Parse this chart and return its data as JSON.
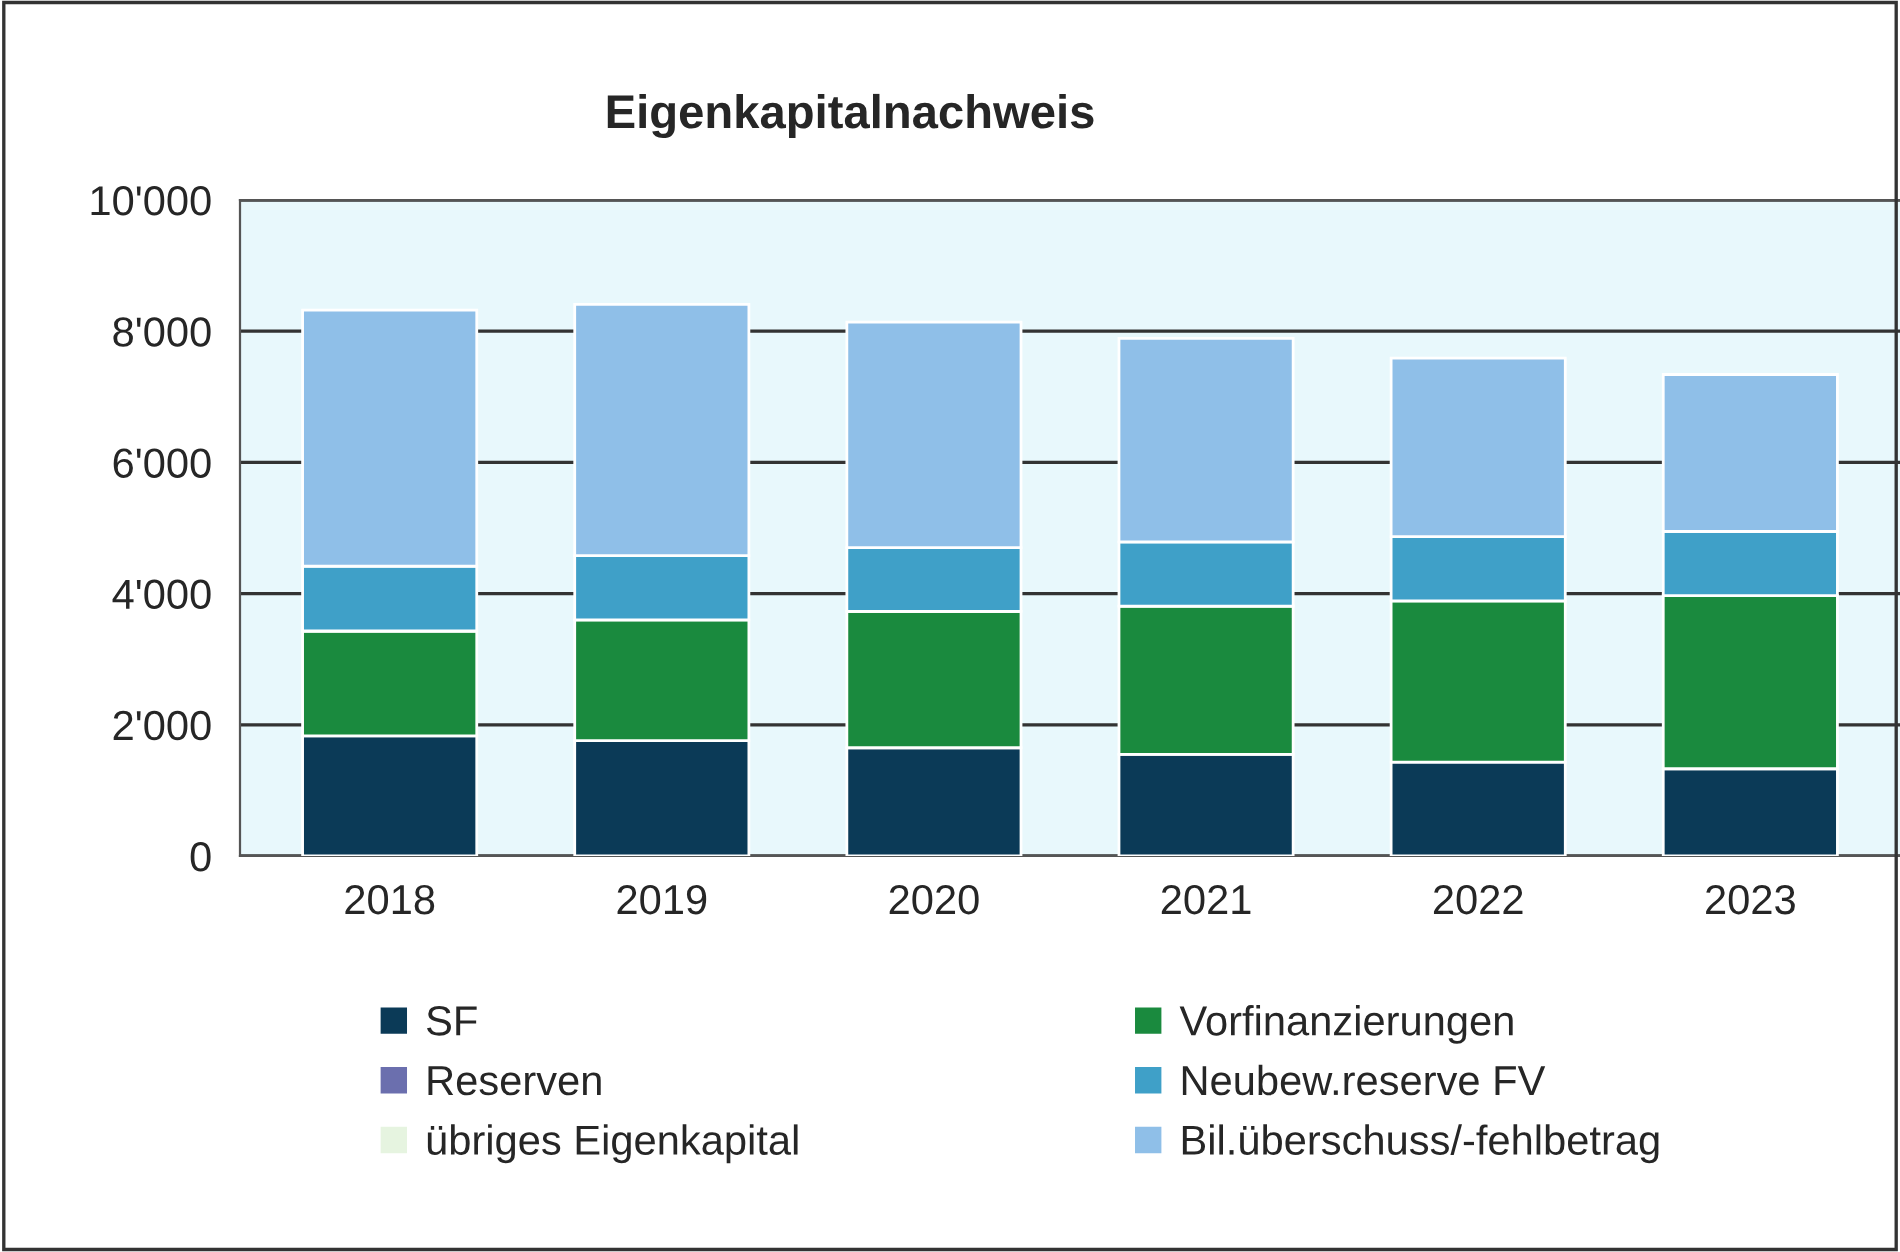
{
  "chart_data": {
    "type": "bar",
    "title": "Eigenkapitalnachweis",
    "stacked": true,
    "categories": [
      "2018",
      "2019",
      "2020",
      "2021",
      "2022",
      "2023"
    ],
    "series": [
      {
        "name": "SF",
        "color": "#0b3a57",
        "values": [
          1830,
          1760,
          1650,
          1550,
          1430,
          1330
        ]
      },
      {
        "name": "Vorfinanzierungen",
        "color": "#1a8a3e",
        "values": [
          1600,
          1840,
          2080,
          2260,
          2460,
          2640
        ]
      },
      {
        "name": "Reserven",
        "color": "#6b6fae",
        "values": [
          0,
          0,
          0,
          0,
          0,
          0
        ]
      },
      {
        "name": "Neubew.reserve FV",
        "color": "#3fa0c8",
        "values": [
          990,
          980,
          970,
          980,
          980,
          980
        ]
      },
      {
        "name": "übriges Eigenkapital",
        "color": "#e6f4e0",
        "values": [
          0,
          0,
          0,
          0,
          0,
          0
        ]
      },
      {
        "name": "Bil.überschuss/-fehlbetrag",
        "color": "#8fbfe8",
        "values": [
          3900,
          3830,
          3440,
          3100,
          2720,
          2390
        ]
      }
    ],
    "ylim": [
      0,
      10000
    ],
    "yticks": [
      0,
      {
        "value": 2000,
        "label": "2'000"
      },
      {
        "value": 4000,
        "label": "4'000"
      },
      {
        "value": 6000,
        "label": "6'000"
      },
      {
        "value": 8000,
        "label": "8'000"
      },
      {
        "value": 10000,
        "label": "10'000"
      }
    ],
    "grid": "y",
    "legend": "bottom"
  }
}
